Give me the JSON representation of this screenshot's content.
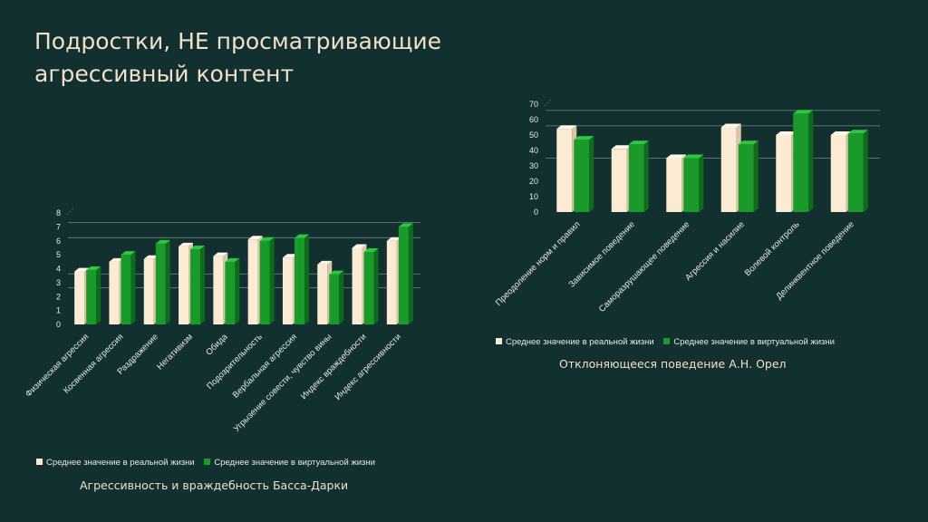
{
  "title": {
    "line1": "Подростки, НЕ просматривающие",
    "line2": "агрессивный контент"
  },
  "colors": {
    "real_front": "#faebd2",
    "real_side": "#d9c6a6",
    "real_top": "#fff7e8",
    "virt_front": "#1a9a2b",
    "virt_side": "#0f6b1c",
    "virt_top": "#2fc640",
    "grid": "#6f8a85",
    "axis_text": "#e8e8e8"
  },
  "chart_data": [
    {
      "type": "bar",
      "categories": [
        "Физическая агрессия",
        "Косвенная агрессия",
        "Раздражение",
        "Негативизм",
        "Обида",
        "Подозрительность",
        "Вербальная агрессия",
        "Угрызение совести, чувство вины",
        "Индекс враждебности",
        "Индекс агрессивности"
      ],
      "series": [
        {
          "name": "Среднее значение в реальной жизни",
          "values": [
            3.8,
            4.5,
            4.7,
            5.6,
            4.9,
            6.1,
            4.8,
            4.3,
            5.5,
            6.0
          ]
        },
        {
          "name": "Среднее значение в виртуальной жизни",
          "values": [
            3.9,
            5.0,
            5.8,
            5.4,
            4.5,
            6.0,
            6.2,
            3.6,
            5.2,
            7.0
          ]
        }
      ],
      "ylim": [
        0,
        8
      ],
      "yticks": [
        0,
        1,
        2,
        3,
        4,
        5,
        6,
        7,
        8
      ],
      "legend_position": "bottom",
      "caption": "Агрессивность и враждебность Басса-Дарки"
    },
    {
      "type": "bar",
      "categories": [
        "Преодоление норм и правил",
        "Зависимое поведение",
        "Саморазрушающее поведение",
        "Агрессия и насилие",
        "Волевой контроль",
        "Делинквентное поведение"
      ],
      "series": [
        {
          "name": "Среднее значение в реальной жизни",
          "values": [
            54,
            41,
            35,
            55,
            50,
            50
          ]
        },
        {
          "name": "Среднее значение в виртуальной жизни",
          "values": [
            47,
            44,
            35,
            44,
            64,
            51
          ]
        }
      ],
      "ylim": [
        0,
        70
      ],
      "yticks": [
        0,
        10,
        20,
        30,
        40,
        50,
        60,
        70
      ],
      "legend_position": "bottom",
      "caption": "Отклоняющееся поведение А.Н. Орел"
    }
  ]
}
